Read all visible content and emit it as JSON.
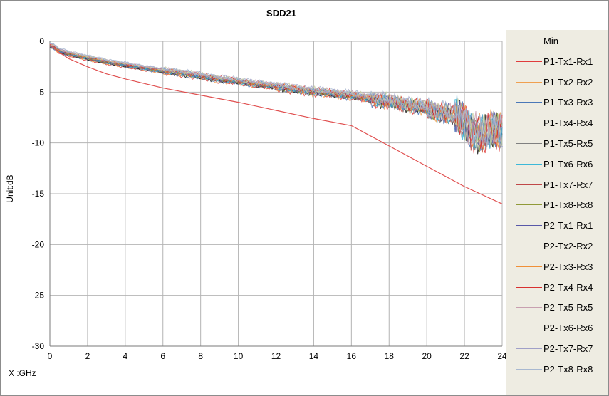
{
  "chart_data": {
    "type": "line",
    "title": "SDD21",
    "xlabel": "X :GHz",
    "ylabel": "Unit:dB",
    "xlim": [
      0,
      24
    ],
    "ylim": [
      -30,
      0
    ],
    "xticks": [
      0,
      2,
      4,
      6,
      8,
      10,
      12,
      14,
      16,
      18,
      20,
      22,
      24
    ],
    "yticks": [
      0,
      -5,
      -10,
      -15,
      -20,
      -25,
      -30
    ],
    "grid": true,
    "legend_position": "right",
    "series": [
      {
        "name": "Min",
        "color": "#e05050",
        "x": [
          0,
          0.1,
          0.5,
          1,
          2,
          3,
          4,
          6,
          8,
          10,
          12,
          14,
          16,
          18,
          20,
          22,
          24
        ],
        "values": [
          -0.3,
          -0.5,
          -1.1,
          -1.7,
          -2.5,
          -3.2,
          -3.7,
          -4.6,
          -5.3,
          -6.0,
          -6.8,
          -7.6,
          -8.3,
          -10.3,
          -12.3,
          -14.3,
          -16.0
        ]
      },
      {
        "name": "P1-Tx1-Rx1",
        "color": "#e03c3c"
      },
      {
        "name": "P1-Tx2-Rx2",
        "color": "#f0a050"
      },
      {
        "name": "P1-Tx3-Rx3",
        "color": "#4a78b8"
      },
      {
        "name": "P1-Tx4-Rx4",
        "color": "#1a1a1a"
      },
      {
        "name": "P1-Tx5-Rx5",
        "color": "#808080"
      },
      {
        "name": "P1-Tx6-Rx6",
        "color": "#3cb8d8"
      },
      {
        "name": "P1-Tx7-Rx7",
        "color": "#c04848"
      },
      {
        "name": "P1-Tx8-Rx8",
        "color": "#909a38"
      },
      {
        "name": "P2-Tx1-Rx1",
        "color": "#5858a8"
      },
      {
        "name": "P2-Tx2-Rx2",
        "color": "#3898c0"
      },
      {
        "name": "P2-Tx3-Rx3",
        "color": "#f09038"
      },
      {
        "name": "P2-Tx4-Rx4",
        "color": "#d83030"
      },
      {
        "name": "P2-Tx5-Rx5",
        "color": "#c8a0b0"
      },
      {
        "name": "P2-Tx6-Rx6",
        "color": "#c8d0a0"
      },
      {
        "name": "P2-Tx7-Rx7",
        "color": "#a0a0c8"
      },
      {
        "name": "P2-Tx8-Rx8",
        "color": "#a8b8d0"
      }
    ],
    "measured_trend": {
      "x": [
        0,
        0.2,
        0.5,
        1,
        2,
        3,
        4,
        5,
        6,
        7,
        8,
        9,
        10,
        11,
        12,
        13,
        14,
        15,
        16,
        17,
        18,
        19,
        20,
        21,
        22,
        22.5,
        23,
        23.5,
        24
      ],
      "values": [
        -0.4,
        -0.5,
        -0.9,
        -1.2,
        -1.6,
        -2.0,
        -2.3,
        -2.6,
        -2.9,
        -3.1,
        -3.4,
        -3.7,
        -3.9,
        -4.2,
        -4.4,
        -4.7,
        -4.9,
        -5.1,
        -5.3,
        -5.6,
        -5.9,
        -6.2,
        -6.6,
        -7.0,
        -7.8,
        -8.8,
        -9.3,
        -8.7,
        -8.5
      ]
    }
  }
}
